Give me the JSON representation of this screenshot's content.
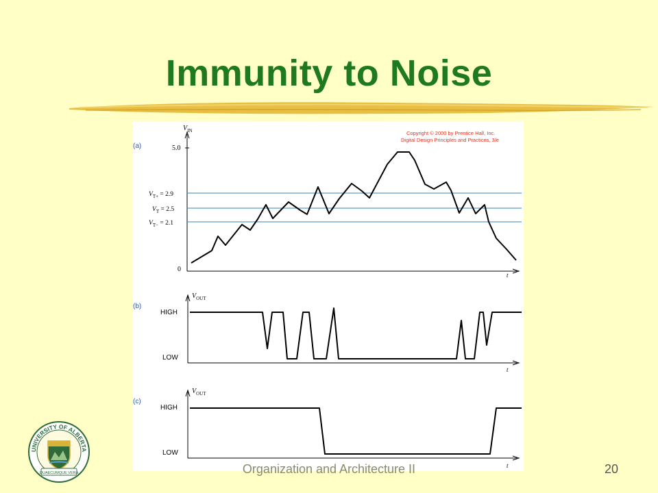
{
  "slide": {
    "title": "Immunity to Noise",
    "footer": "Organization and Architecture II",
    "number": "20"
  },
  "crest": {
    "top_text": "UNIVERSITY OF ALBERTA",
    "motto": "QUAECUMQUE VERA"
  },
  "figure": {
    "copyright_line1": "Copyright © 2000 by Prentice Hall, Inc.",
    "copyright_line2": "Digital Design Principles and Practices, 3/e",
    "panel_a": {
      "label": "(a)",
      "axis_label": "V",
      "axis_sub": "IN",
      "y_max_label": "5.0",
      "y_zero_label": "0",
      "t_label": "t",
      "thresholds": [
        {
          "v": "V",
          "sub": "T+",
          "text": " = 2.9",
          "value": 2.9
        },
        {
          "v": "V",
          "sub": "T",
          "text": " = 2.5",
          "value": 2.5
        },
        {
          "v": "V",
          "sub": "T−",
          "text": " = 2.1",
          "value": 2.1
        }
      ]
    },
    "panel_b": {
      "label": "(b)",
      "axis_label": "V",
      "axis_sub": "OUT",
      "high_label": "HIGH",
      "low_label": "LOW",
      "t_label": "t"
    },
    "panel_c": {
      "label": "(c)",
      "axis_label": "V",
      "axis_sub": "OUT",
      "high_label": "HIGH",
      "low_label": "LOW",
      "t_label": "t"
    }
  },
  "colors": {
    "background": "#ffffc6",
    "title": "#1f7a1f",
    "threshold_line": "#5a9ec9",
    "copyright": "#e0301e",
    "panel_label": "#2a5db0",
    "stroke_gold": "#e0b02a"
  }
}
